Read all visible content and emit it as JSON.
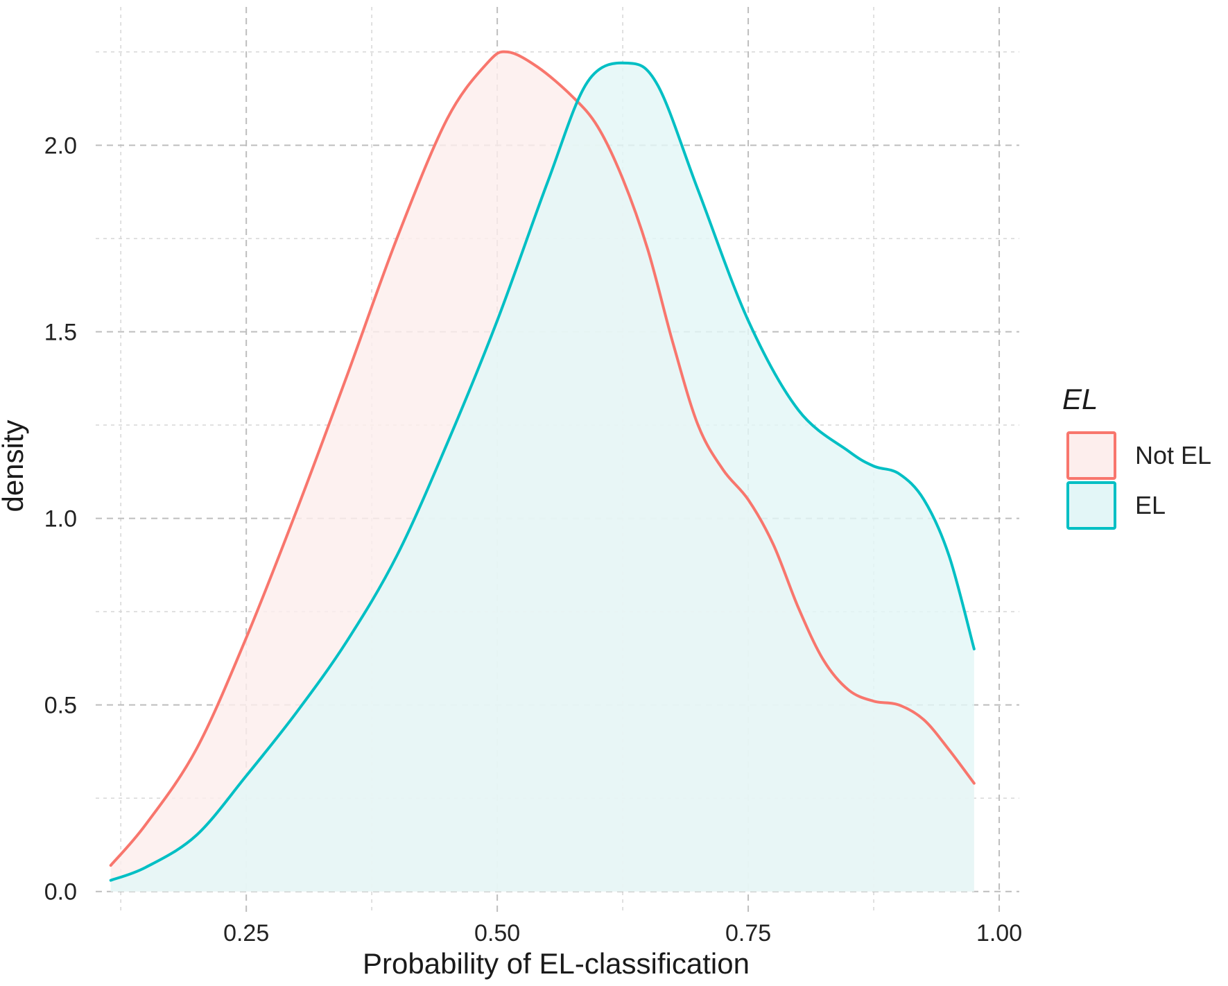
{
  "chart_data": {
    "type": "area",
    "title": "",
    "xlabel": "Probability of EL-classification",
    "ylabel": "density",
    "xlim": [
      0.1,
      1.02
    ],
    "ylim": [
      -0.06,
      2.3
    ],
    "x_ticks": [
      0.25,
      0.5,
      0.75,
      1.0
    ],
    "x_tick_labels": [
      "0.25",
      "0.50",
      "0.75",
      "1.00"
    ],
    "y_ticks": [
      0.0,
      0.5,
      1.0,
      1.5,
      2.0
    ],
    "y_tick_labels": [
      "0.0",
      "0.5",
      "1.0",
      "1.5",
      "2.0"
    ],
    "grid": true,
    "legend": {
      "title": "EL",
      "position": "right"
    },
    "series": [
      {
        "name": "Not EL",
        "color": "#F8766D",
        "fill": "#FDEEED",
        "points": [
          [
            0.115,
            0.07
          ],
          [
            0.15,
            0.18
          ],
          [
            0.2,
            0.38
          ],
          [
            0.25,
            0.68
          ],
          [
            0.3,
            1.02
          ],
          [
            0.35,
            1.38
          ],
          [
            0.4,
            1.75
          ],
          [
            0.45,
            2.07
          ],
          [
            0.49,
            2.22
          ],
          [
            0.51,
            2.25
          ],
          [
            0.54,
            2.21
          ],
          [
            0.575,
            2.13
          ],
          [
            0.6,
            2.05
          ],
          [
            0.625,
            1.91
          ],
          [
            0.65,
            1.72
          ],
          [
            0.675,
            1.47
          ],
          [
            0.7,
            1.25
          ],
          [
            0.725,
            1.13
          ],
          [
            0.75,
            1.05
          ],
          [
            0.775,
            0.93
          ],
          [
            0.8,
            0.76
          ],
          [
            0.825,
            0.62
          ],
          [
            0.85,
            0.54
          ],
          [
            0.875,
            0.51
          ],
          [
            0.9,
            0.5
          ],
          [
            0.925,
            0.46
          ],
          [
            0.95,
            0.38
          ],
          [
            0.975,
            0.29
          ]
        ]
      },
      {
        "name": "EL",
        "color": "#00BFC4",
        "fill": "#E3F6F7",
        "points": [
          [
            0.115,
            0.03
          ],
          [
            0.15,
            0.065
          ],
          [
            0.2,
            0.15
          ],
          [
            0.25,
            0.31
          ],
          [
            0.3,
            0.48
          ],
          [
            0.35,
            0.67
          ],
          [
            0.4,
            0.9
          ],
          [
            0.45,
            1.2
          ],
          [
            0.5,
            1.53
          ],
          [
            0.55,
            1.9
          ],
          [
            0.59,
            2.17
          ],
          [
            0.63,
            2.22
          ],
          [
            0.66,
            2.16
          ],
          [
            0.7,
            1.88
          ],
          [
            0.75,
            1.53
          ],
          [
            0.8,
            1.29
          ],
          [
            0.85,
            1.18
          ],
          [
            0.875,
            1.14
          ],
          [
            0.9,
            1.12
          ],
          [
            0.925,
            1.05
          ],
          [
            0.95,
            0.9
          ],
          [
            0.975,
            0.65
          ]
        ]
      }
    ]
  }
}
